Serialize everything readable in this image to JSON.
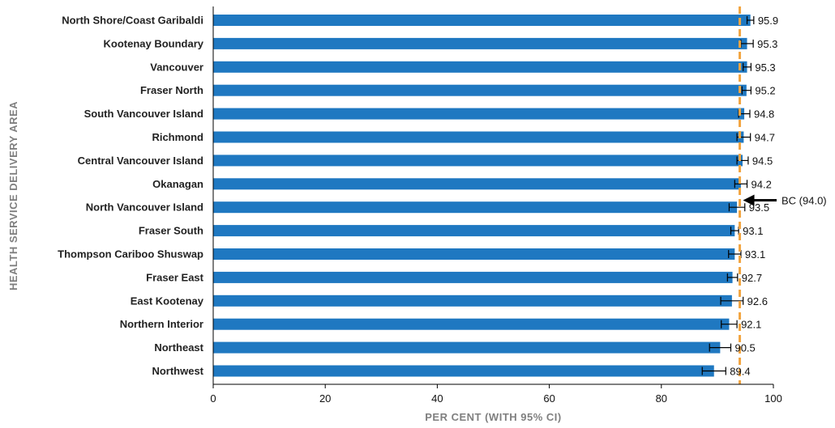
{
  "chart_data": {
    "type": "bar",
    "orientation": "horizontal",
    "title": "",
    "xlabel": "PER CENT (WITH 95% CI)",
    "ylabel": "HEALTH SERVICE DELIVERY AREA",
    "xlim": [
      0,
      100
    ],
    "xticks": [
      0,
      20,
      40,
      60,
      80,
      100
    ],
    "grid": false,
    "categories": [
      "North Shore/Coast Garibaldi",
      "Kootenay Boundary",
      "Vancouver",
      "Fraser North",
      "South Vancouver Island",
      "Richmond",
      "Central Vancouver Island",
      "Okanagan",
      "North Vancouver Island",
      "Fraser South",
      "Thompson Cariboo Shuswap",
      "Fraser East",
      "East Kootenay",
      "Northern Interior",
      "Northeast",
      "Northwest"
    ],
    "values": [
      95.9,
      95.3,
      95.3,
      95.2,
      94.8,
      94.7,
      94.5,
      94.2,
      93.5,
      93.1,
      93.1,
      92.7,
      92.6,
      92.1,
      90.5,
      89.4
    ],
    "ci_lower": [
      95.3,
      94.2,
      94.6,
      94.4,
      93.8,
      93.5,
      93.5,
      93.1,
      92.1,
      92.4,
      92.0,
      91.8,
      90.6,
      90.7,
      88.6,
      87.3
    ],
    "ci_upper": [
      96.5,
      96.4,
      96.0,
      96.0,
      95.8,
      95.9,
      95.5,
      95.3,
      94.9,
      93.8,
      94.2,
      93.6,
      94.6,
      93.5,
      92.4,
      91.5
    ],
    "value_labels": [
      "95.9",
      "95.3",
      "95.3",
      "95.2",
      "94.8",
      "94.7",
      "94.5",
      "94.2",
      "93.5",
      "93.1",
      "93.1",
      "92.7",
      "92.6",
      "92.1",
      "90.5",
      "89.4"
    ],
    "reference_line": {
      "value": 94.0,
      "label": "BC (94.0)",
      "style": "dashed",
      "color": "#f2a541"
    },
    "colors": {
      "bar": "#1f78c1",
      "error_bar": "#000000",
      "axis": "#000000"
    }
  }
}
